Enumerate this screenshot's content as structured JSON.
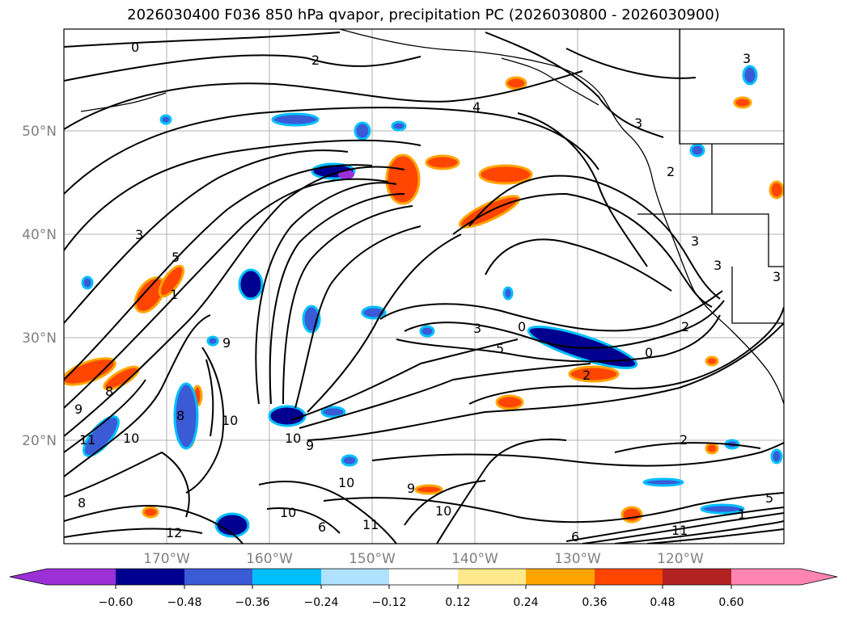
{
  "title": "2026030400 F036 850 hPa qvapor, precipitation PC (2026030800 - 2026030900)",
  "map": {
    "lat_labels": [
      "50°N",
      "40°N",
      "30°N",
      "20°N"
    ],
    "lon_labels": [
      "170°W",
      "160°W",
      "150°W",
      "140°W",
      "130°W",
      "120°W"
    ],
    "contour_labels": [
      "0",
      "2",
      "3",
      "4",
      "3",
      "2",
      "3",
      "3",
      "3",
      "5",
      "1",
      "9",
      "9",
      "8",
      "8",
      "10",
      "11",
      "10",
      "12",
      "10",
      "10",
      "9",
      "10",
      "11",
      "10",
      "9",
      "8",
      "3",
      "2",
      "0",
      "0",
      "5",
      "2",
      "2",
      "5",
      "1",
      "11",
      "6",
      "6",
      "3"
    ]
  },
  "colorbar": {
    "colors": [
      "#9b30d6",
      "#000090",
      "#3a5ad6",
      "#00bfff",
      "#b0e2ff",
      "#ffffff",
      "#ffe98c",
      "#ffa500",
      "#ff4500",
      "#b22222",
      "#ff85b0"
    ],
    "tick_labels": [
      "−0.60",
      "−0.48",
      "−0.36",
      "−0.24",
      "−0.12",
      "0.12",
      "0.24",
      "0.36",
      "0.48",
      "0.60"
    ]
  }
}
